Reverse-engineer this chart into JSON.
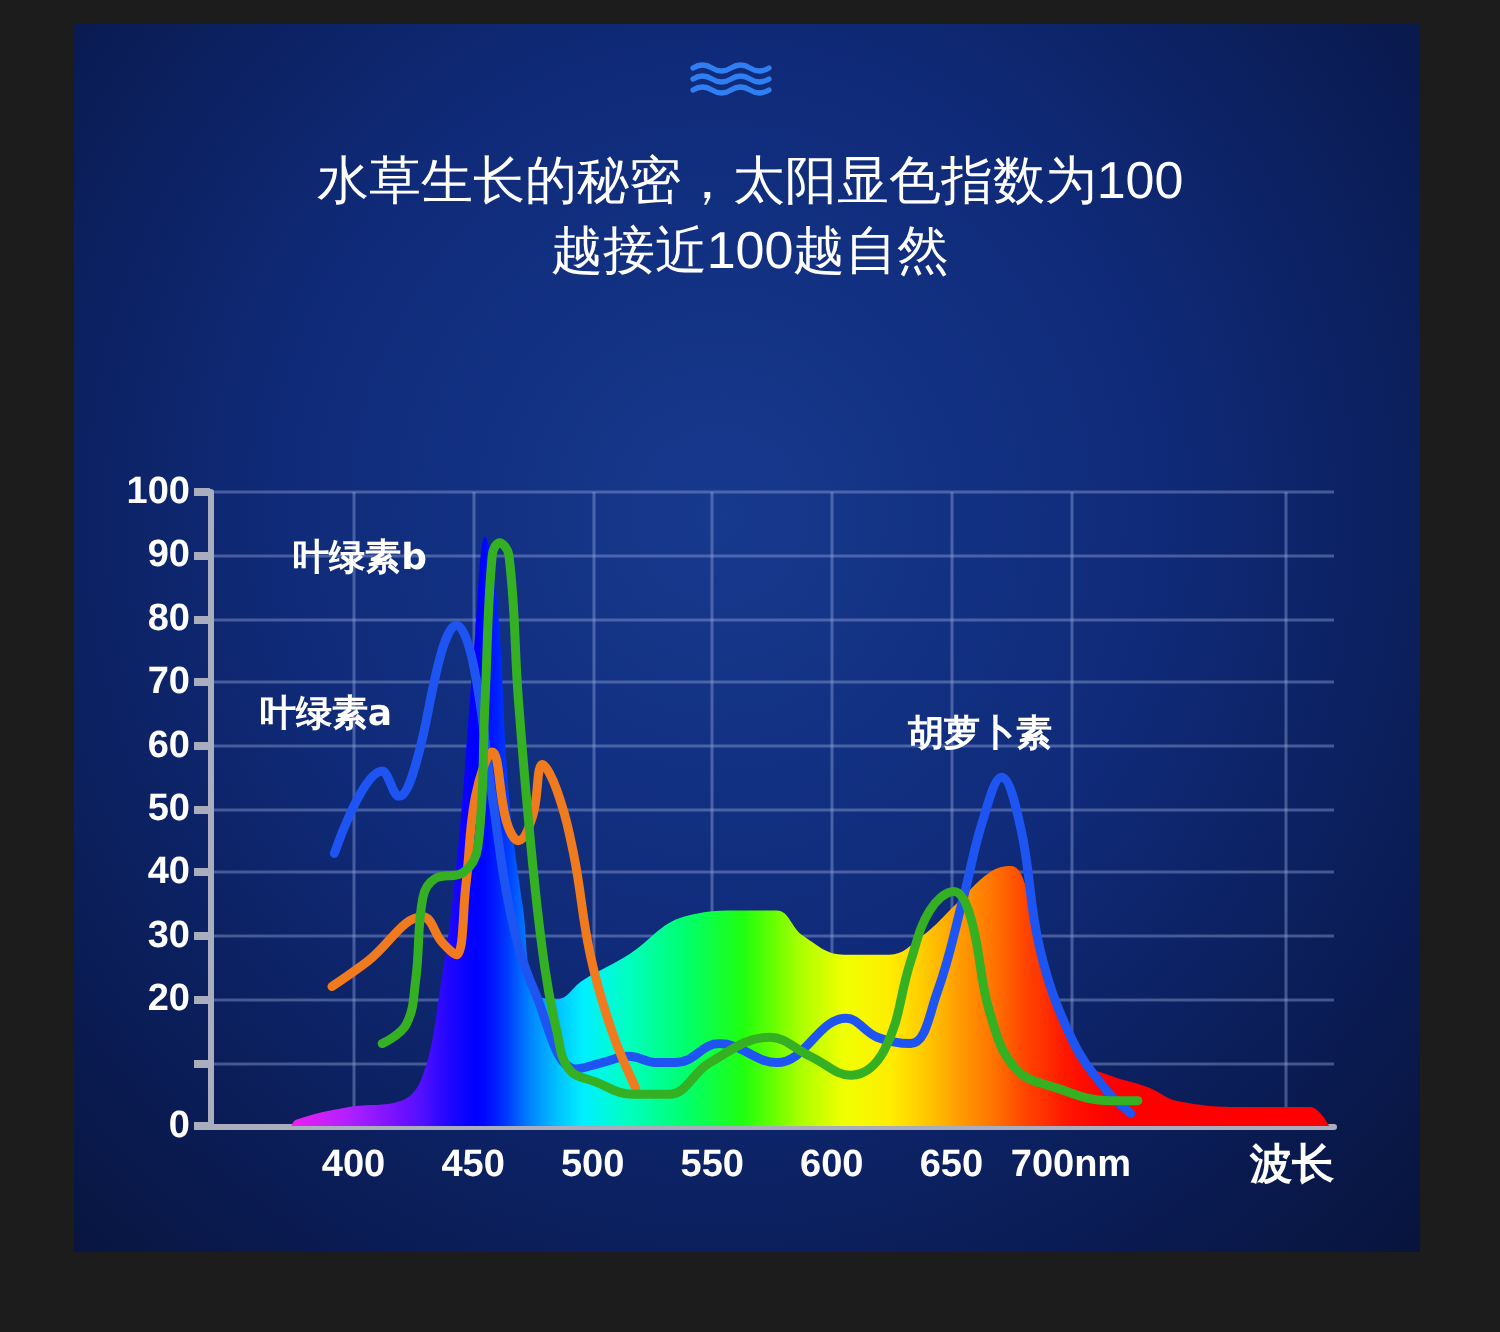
{
  "chart_data": {
    "type": "line",
    "title": "水草生长的秘密，太阳显色指数为100",
    "subtitle": "越接近100越自然",
    "xlabel": "波长",
    "xlim": [
      340,
      810
    ],
    "xticks": [
      400,
      450,
      500,
      550,
      600,
      650,
      {
        "value": 700,
        "label": "700nm"
      },
      {
        "value": 790,
        "label": null
      }
    ],
    "ylim": [
      0,
      100
    ],
    "yticks": [
      0,
      {
        "value": 10,
        "label": null
      },
      20,
      30,
      40,
      50,
      60,
      70,
      80,
      90,
      100
    ],
    "grid": true,
    "series": [
      {
        "type": "area",
        "x": [
          374,
          376,
          398,
          420,
          429,
          436,
          443,
          451,
          455,
          460,
          465,
          471,
          476,
          485,
          496,
          515,
          538,
          563,
          577,
          588,
          605,
          624,
          638,
          652,
          666,
          675,
          680,
          689,
          697,
          705,
          716,
          733,
          744,
          772,
          789,
          800,
          808
        ],
        "values": [
          0,
          1,
          3,
          4,
          8,
          21,
          41,
          78,
          93,
          83,
          52,
          34,
          21,
          20,
          23,
          27,
          33,
          34,
          34,
          30,
          27,
          27,
          30,
          35,
          40,
          41,
          39,
          26,
          16,
          10,
          8,
          6,
          4,
          3,
          3,
          3,
          0
        ],
        "colors": [
          "#ee22ee",
          "#e820f0",
          "#b020ff",
          "#7010ff",
          "#5010ff",
          "#3008ff",
          "#1505ff",
          "#0000ff",
          "#0008ff",
          "#0020ff",
          "#0040ff",
          "#0070ff",
          "#0090ff",
          "#00c0ff",
          "#00f0ff",
          "#00ffc0",
          "#00ff70",
          "#20ff10",
          "#70ff00",
          "#b0ff00",
          "#f0ff00",
          "#ffee00",
          "#ffcc00",
          "#ffa000",
          "#ff7800",
          "#ff5a00",
          "#ff4800",
          "#ff3000",
          "#ff1a00",
          "#ff0c00",
          "#ff0000",
          "#ff0000",
          "#ff0000",
          "#ff0000",
          "#ff0000",
          "#ff0000",
          "#ff0000"
        ]
      },
      {
        "color": "#1e55f2",
        "x": [
          392,
          412,
          419,
          426,
          437,
          443,
          450,
          458,
          466,
          476,
          493,
          504,
          515,
          527,
          535,
          553,
          577,
          606,
          619,
          633,
          644,
          655,
          663,
          671,
          679,
          687,
          700,
          714,
          725
        ],
        "values": [
          43,
          56,
          52,
          57,
          75,
          79,
          73,
          52,
          33,
          21,
          9,
          10,
          11,
          10,
          10,
          13,
          10,
          17,
          14,
          13,
          21,
          36,
          48,
          55,
          47,
          28,
          14,
          6,
          2
        ]
      },
      {
        "color": "#f07a1e",
        "x": [
          391,
          406,
          429,
          437,
          443,
          447,
          451,
          458,
          464,
          469,
          475,
          479,
          485,
          492,
          499,
          508,
          518
        ],
        "values": [
          22,
          26,
          33,
          29,
          27,
          38,
          52,
          59,
          48,
          45,
          49,
          57,
          53,
          43,
          27,
          15,
          6
        ]
      },
      {
        "color": "#35b022",
        "x": [
          412,
          422,
          426,
          429,
          434,
          446,
          452,
          455,
          458,
          461,
          465,
          469,
          475,
          480,
          485,
          490,
          501,
          517,
          532,
          549,
          574,
          591,
          608,
          622,
          633,
          641,
          651,
          658,
          666,
          677,
          694,
          716,
          728
        ],
        "values": [
          13,
          16,
          23,
          36,
          39,
          40,
          44,
          67,
          90,
          92,
          90,
          67,
          41,
          25,
          15,
          9,
          7,
          5,
          5,
          10,
          14,
          11,
          8,
          12,
          26,
          34,
          37,
          33,
          18,
          9,
          6,
          4,
          4
        ]
      }
    ],
    "annotations": [
      "叶绿素b",
      "叶绿素a",
      "胡萝卜素"
    ]
  }
}
